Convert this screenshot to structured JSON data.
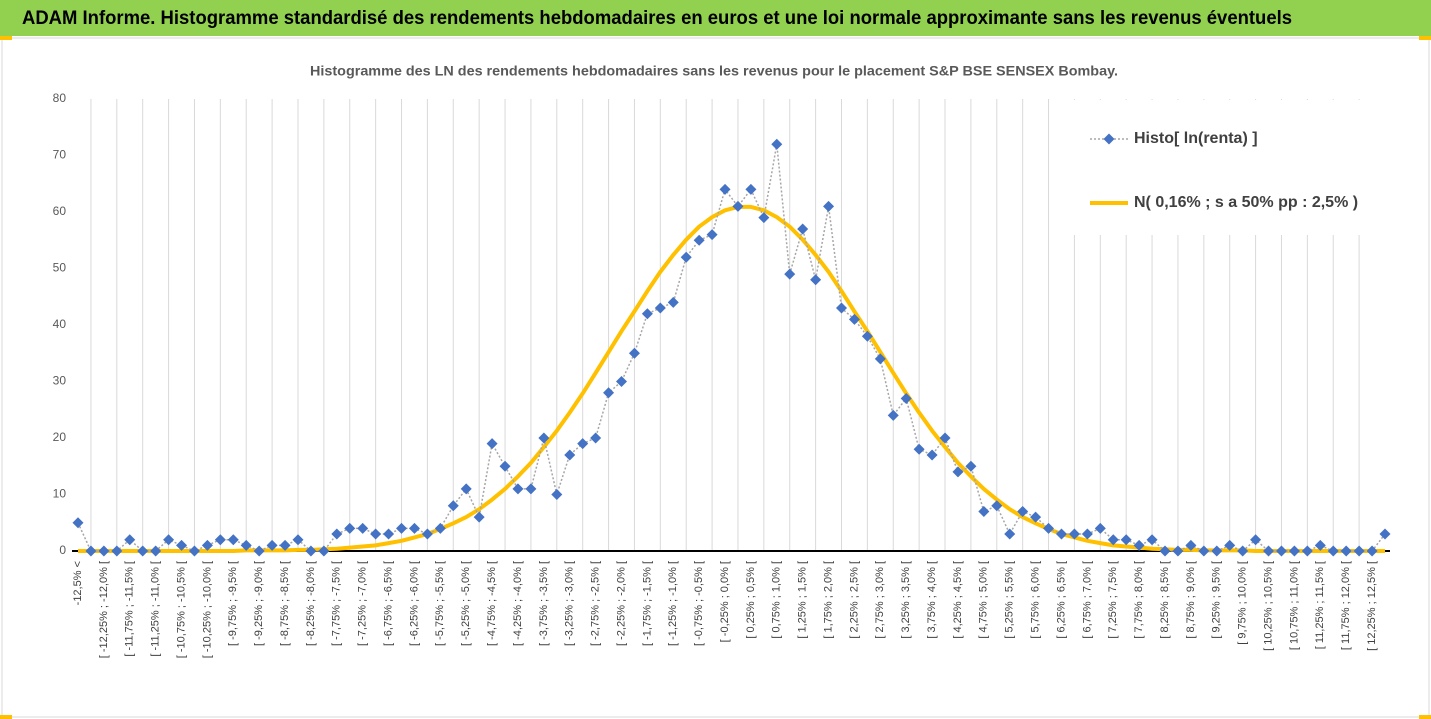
{
  "header": {
    "title": "ADAM Informe. Histogramme standardisé des rendements hebdomadaires en euros et une loi normale approximante sans les revenus éventuels"
  },
  "chart_data": {
    "type": "line",
    "title": "Histogramme des LN des rendements hebdomadaires sans les revenus pour le placement S&P BSE SENSEX Bombay.",
    "categories": [
      "-12,5% <",
      null,
      "[ -12,25% ; -12,0% [",
      null,
      "[ -11,75% ; -11,5% [",
      null,
      "[ -11,25% ; -11,0% [",
      null,
      "[ -10,75% ; -10,5% [",
      null,
      "[ -10,25% ; -10,0% [",
      null,
      "[ -9,75% ; -9,5% [",
      null,
      "[ -9,25% ; -9,0% [",
      null,
      "[ -8,75% ; -8,5% [",
      null,
      "[ -8,25% ; -8,0% [",
      null,
      "[ -7,75% ; -7,5% [",
      null,
      "[ -7,25% ; -7,0% [",
      null,
      "[ -6,75% ; -6,5% [",
      null,
      "[ -6,25% ; -6,0% [",
      null,
      "[ -5,75% ; -5,5% [",
      null,
      "[ -5,25% ; -5,0% [",
      null,
      "[ -4,75% ; -4,5% [",
      null,
      "[ -4,25% ; -4,0% [",
      null,
      "[ -3,75% ; -3,5% [",
      null,
      "[ -3,25% ; -3,0% [",
      null,
      "[ -2,75% ; -2,5% [",
      null,
      "[ -2,25% ; -2,0% [",
      null,
      "[ -1,75% ; -1,5% [",
      null,
      "[ -1,25% ; -1,0% [",
      null,
      "[ -0,75% ; -0,5% [",
      null,
      "[ -0,25% ; 0,0% [",
      null,
      "[ 0,25% ; 0,5% [",
      null,
      "[ 0,75% ; 1,0% [",
      null,
      "[ 1,25% ; 1,5% [",
      null,
      "[ 1,75% ; 2,0% [",
      null,
      "[ 2,25% ; 2,5% [",
      null,
      "[ 2,75% ; 3,0% [",
      null,
      "[ 3,25% ; 3,5% [",
      null,
      "[ 3,75% ; 4,0% [",
      null,
      "[ 4,25% ; 4,5% [",
      null,
      "[ 4,75% ; 5,0% [",
      null,
      "[ 5,25% ; 5,5% [",
      null,
      "[ 5,75% ; 6,0% [",
      null,
      "[ 6,25% ; 6,5% [",
      null,
      "[ 6,75% ; 7,0% [",
      null,
      "[ 7,25% ; 7,5% [",
      null,
      "[ 7,75% ; 8,0% [",
      null,
      "[ 8,25% ; 8,5% [",
      null,
      "[ 8,75% ; 9,0% [",
      null,
      "[ 9,25% ; 9,5% [",
      null,
      "[ 9,75% ; 10,0% [",
      null,
      "[ 10,25% ; 10,5% [",
      null,
      "[ 10,75% ; 11,0% [",
      null,
      "[ 11,25% ; 11,5% [",
      null,
      "[ 11,75% ; 12,0% [",
      null,
      "[ 12,25% ; 12,5% [",
      null
    ],
    "series": [
      {
        "name": "Histo[ ln(renta) ]",
        "color": "#4472c4",
        "marker": "diamond",
        "values": [
          5,
          0,
          0,
          0,
          2,
          0,
          0,
          2,
          1,
          0,
          1,
          2,
          2,
          1,
          0,
          1,
          1,
          2,
          0,
          0,
          3,
          4,
          4,
          3,
          3,
          4,
          4,
          3,
          4,
          8,
          11,
          6,
          19,
          15,
          11,
          11,
          20,
          10,
          17,
          19,
          20,
          28,
          30,
          35,
          42,
          43,
          44,
          52,
          55,
          56,
          64,
          61,
          64,
          59,
          72,
          49,
          57,
          48,
          61,
          43,
          41,
          38,
          34,
          24,
          27,
          18,
          17,
          20,
          14,
          15,
          7,
          8,
          3,
          7,
          6,
          4,
          3,
          3,
          3,
          4,
          2,
          2,
          1,
          2,
          0,
          0,
          1,
          0,
          0,
          1,
          0,
          2,
          0,
          0,
          0,
          0,
          1,
          0,
          0,
          0,
          0,
          3
        ]
      },
      {
        "name": "N( 0,16% ; s a 50% pp : 2,5% )",
        "color": "#ffc000",
        "values": [
          0,
          0,
          0,
          0,
          0,
          0,
          0,
          0,
          0,
          0,
          0,
          0,
          0,
          0.1,
          0.1,
          0.1,
          0.1,
          0.2,
          0.2,
          0.3,
          0.4,
          0.6,
          0.8,
          1.0,
          1.4,
          1.8,
          2.4,
          3.0,
          3.9,
          4.9,
          6.0,
          7.4,
          9.1,
          11.0,
          13.2,
          15.6,
          18.4,
          21.3,
          24.5,
          27.9,
          31.5,
          35.2,
          38.9,
          42.4,
          46.0,
          49.4,
          52.4,
          55.1,
          57.4,
          59.1,
          60.3,
          60.9,
          60.9,
          60.3,
          59.1,
          57.4,
          55.1,
          52.4,
          49.4,
          46.0,
          42.4,
          38.9,
          35.2,
          31.5,
          27.9,
          24.5,
          21.3,
          18.4,
          15.6,
          13.2,
          11.0,
          9.1,
          7.4,
          6.0,
          4.9,
          3.9,
          3.0,
          2.4,
          1.8,
          1.4,
          1.0,
          0.8,
          0.6,
          0.4,
          0.3,
          0.2,
          0.2,
          0.1,
          0.1,
          0.1,
          0.1,
          0,
          0,
          0,
          0,
          0,
          0,
          0,
          0,
          0,
          0,
          0
        ]
      }
    ],
    "ylim": [
      0,
      80
    ],
    "yticks": [
      0,
      10,
      20,
      30,
      40,
      50,
      60,
      70,
      80
    ],
    "xgrid": true,
    "legend": "top-right"
  }
}
